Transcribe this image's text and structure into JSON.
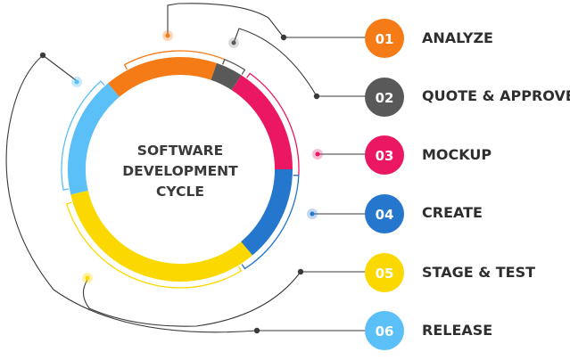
{
  "center_title": [
    "SOFTWARE",
    "DEVELOPMENT",
    "CYCLE"
  ],
  "steps": [
    {
      "number": "01",
      "label": "ANALYZE",
      "color": "#f47b16"
    },
    {
      "number": "02",
      "label": "QUOTE & APPROVE",
      "color": "#595959"
    },
    {
      "number": "03",
      "label": "MOCKUP",
      "color": "#ec1763"
    },
    {
      "number": "04",
      "label": "CREATE",
      "color": "#2477cc"
    },
    {
      "number": "05",
      "label": "STAGE & TEST",
      "color": "#fbd900"
    },
    {
      "number": "06",
      "label": "RELEASE",
      "color": "#5bc0f7"
    }
  ],
  "colors": {
    "connector_line": "#3a3a3a",
    "center_text": "#3a3a3a",
    "background": "#ffffff"
  }
}
